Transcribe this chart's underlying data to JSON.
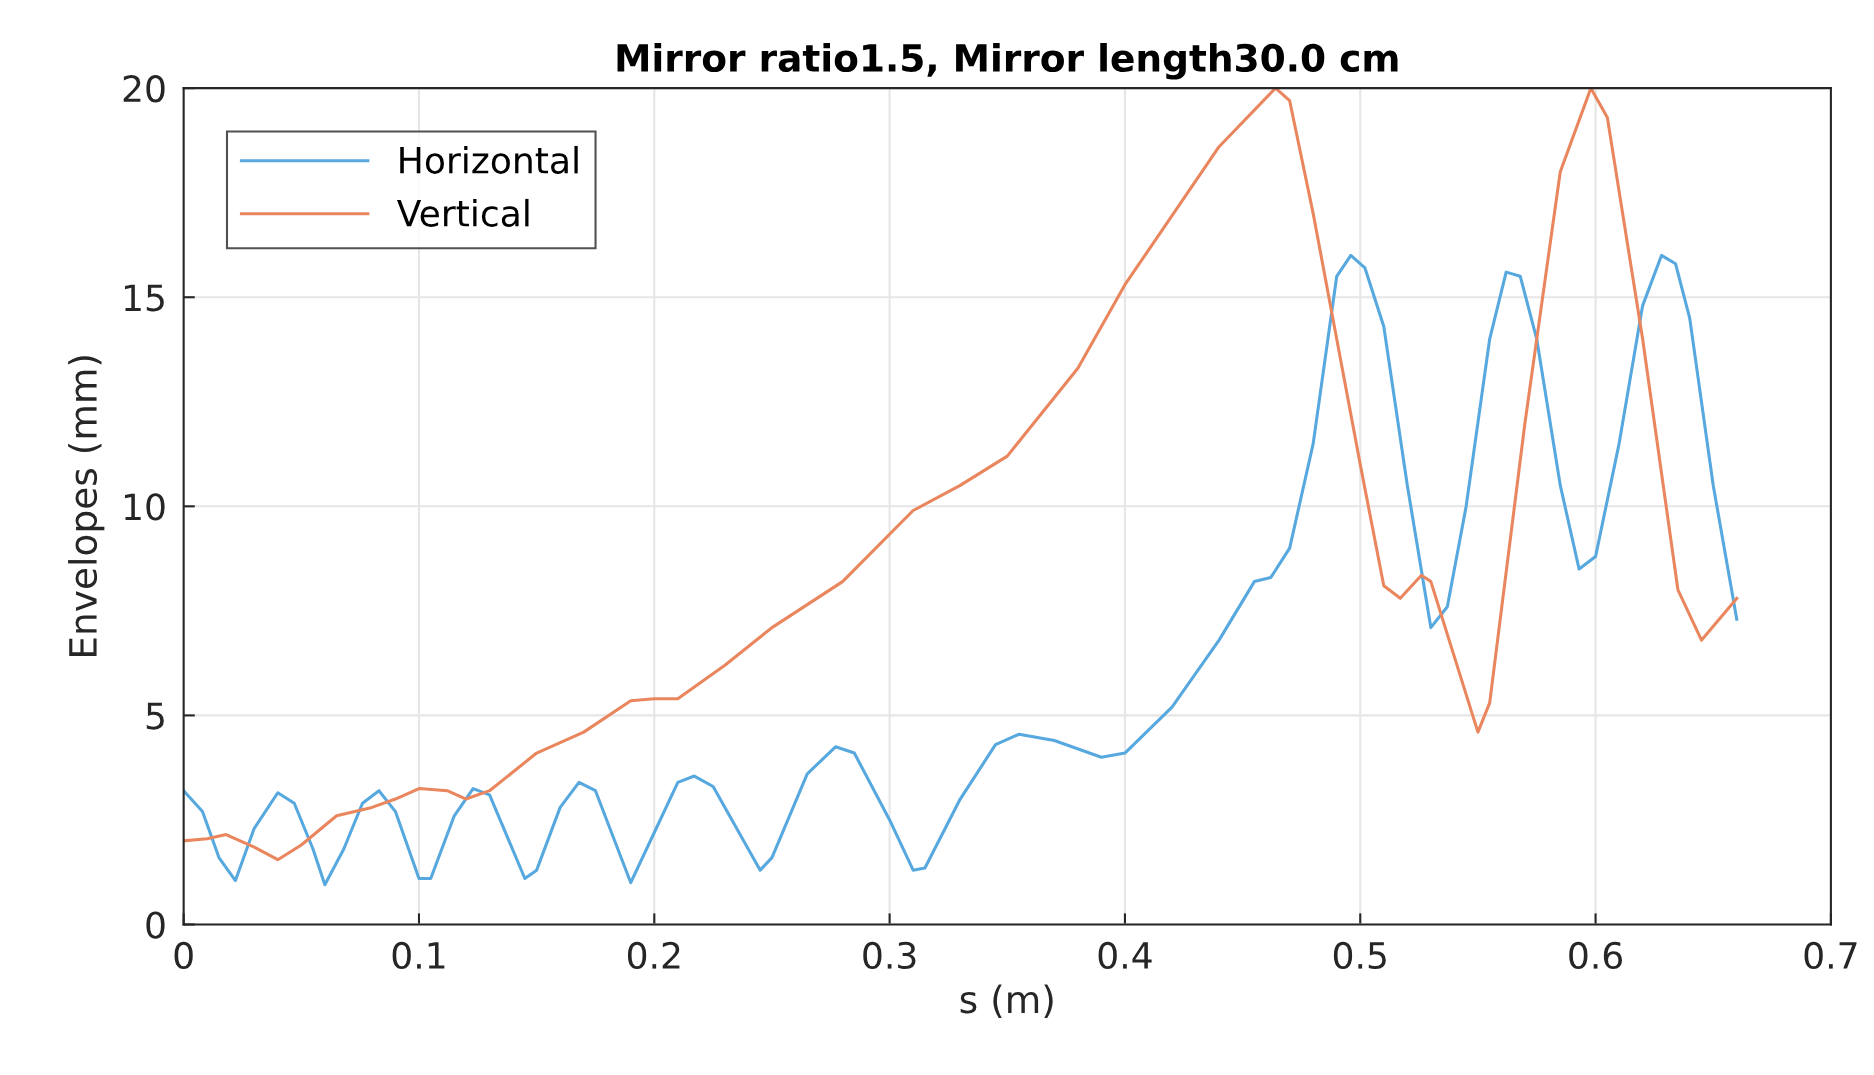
{
  "chart_data": {
    "type": "line",
    "title": "Mirror ratio1.5, Mirror length30.0 cm",
    "xlabel": "s (m)",
    "ylabel": "Envelopes (mm)",
    "xlim": [
      0,
      0.7
    ],
    "xticks": [
      0,
      0.1,
      0.2,
      0.3,
      0.4,
      0.5,
      0.6,
      0.7
    ],
    "ylim": [
      0,
      20
    ],
    "yticks": [
      0,
      5,
      10,
      15,
      20
    ],
    "grid": true,
    "legend": "top left",
    "series": [
      {
        "name": "Horizontal",
        "color": "#56a8de",
        "x": [
          0,
          0.008,
          0.015,
          0.022,
          0.03,
          0.04,
          0.047,
          0.055,
          0.06,
          0.068,
          0.076,
          0.083,
          0.09,
          0.1,
          0.105,
          0.115,
          0.123,
          0.13,
          0.145,
          0.15,
          0.16,
          0.168,
          0.175,
          0.19,
          0.2,
          0.21,
          0.217,
          0.225,
          0.245,
          0.25,
          0.265,
          0.277,
          0.285,
          0.3,
          0.31,
          0.315,
          0.33,
          0.345,
          0.355,
          0.37,
          0.39,
          0.4,
          0.42,
          0.44,
          0.455,
          0.462,
          0.47,
          0.48,
          0.49,
          0.496,
          0.502,
          0.51,
          0.52,
          0.53,
          0.537,
          0.545,
          0.555,
          0.562,
          0.568,
          0.575,
          0.585,
          0.593,
          0.6,
          0.61,
          0.62,
          0.628,
          0.634,
          0.64,
          0.65,
          0.66
        ],
        "values": [
          3.2,
          2.7,
          1.6,
          1.05,
          2.3,
          3.15,
          2.9,
          1.8,
          0.95,
          1.8,
          2.9,
          3.2,
          2.7,
          1.1,
          1.1,
          2.6,
          3.25,
          3.1,
          1.1,
          1.3,
          2.8,
          3.4,
          3.2,
          1.0,
          2.2,
          3.4,
          3.55,
          3.3,
          1.3,
          1.6,
          3.6,
          4.25,
          4.1,
          2.5,
          1.3,
          1.35,
          3.0,
          4.3,
          4.55,
          4.4,
          4.0,
          4.1,
          5.2,
          6.8,
          8.2,
          8.3,
          9.0,
          11.5,
          15.5,
          16.0,
          15.7,
          14.3,
          10.5,
          7.1,
          7.6,
          10.0,
          14.0,
          15.6,
          15.5,
          14.0,
          10.5,
          8.5,
          8.8,
          11.5,
          14.8,
          16.0,
          15.8,
          14.5,
          10.5,
          7.3
        ]
      },
      {
        "name": "Vertical",
        "color": "#e9865e",
        "x": [
          0,
          0.01,
          0.018,
          0.03,
          0.04,
          0.05,
          0.065,
          0.08,
          0.09,
          0.1,
          0.112,
          0.12,
          0.13,
          0.15,
          0.17,
          0.19,
          0.2,
          0.21,
          0.23,
          0.25,
          0.28,
          0.31,
          0.33,
          0.35,
          0.38,
          0.4,
          0.44,
          0.464,
          0.47,
          0.48,
          0.5,
          0.51,
          0.517,
          0.526,
          0.53,
          0.55,
          0.555,
          0.57,
          0.585,
          0.598,
          0.605,
          0.62,
          0.635,
          0.645,
          0.66
        ],
        "values": [
          2.0,
          2.05,
          2.15,
          1.85,
          1.55,
          1.9,
          2.6,
          2.8,
          3.0,
          3.25,
          3.2,
          3.0,
          3.2,
          4.1,
          4.6,
          5.35,
          5.4,
          5.4,
          6.2,
          7.1,
          8.2,
          9.9,
          10.5,
          11.2,
          13.3,
          15.3,
          18.6,
          20.0,
          19.7,
          17.0,
          11.0,
          8.1,
          7.8,
          8.35,
          8.2,
          4.6,
          5.3,
          12.0,
          18.0,
          20.0,
          19.3,
          14.0,
          8.0,
          6.8,
          7.8
        ]
      }
    ]
  }
}
